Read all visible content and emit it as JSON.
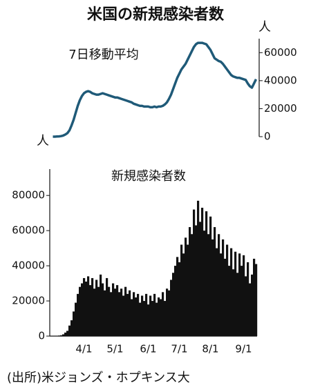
{
  "title": "米国の新規感染者数",
  "source": "(出所)米ジョンズ・ホプキンス大",
  "chart_data": [
    {
      "type": "line",
      "title": "7日移動平均",
      "y_unit": "人",
      "color": "#1f5a78",
      "ylim": [
        0,
        70000
      ],
      "yticks": [
        0,
        20000,
        40000,
        60000
      ],
      "y_side": "right",
      "values": [
        0,
        0,
        100,
        200,
        400,
        800,
        1500,
        2500,
        4500,
        8000,
        12000,
        17000,
        22000,
        26000,
        29000,
        31000,
        32000,
        32500,
        32000,
        31000,
        30500,
        30000,
        30000,
        30500,
        31000,
        30500,
        30000,
        29500,
        29000,
        28500,
        28000,
        28000,
        27500,
        27000,
        26500,
        26000,
        25500,
        25000,
        24500,
        23500,
        23000,
        22500,
        22000,
        22000,
        21500,
        21500,
        21500,
        21000,
        21000,
        21500,
        21000,
        21500,
        21500,
        22000,
        23000,
        24500,
        27000,
        30000,
        34000,
        38000,
        42000,
        45000,
        48000,
        50000,
        52000,
        55000,
        58000,
        61000,
        64000,
        66000,
        67000,
        67000,
        67000,
        66500,
        66000,
        64000,
        62000,
        59000,
        56000,
        55000,
        54000,
        53500,
        52000,
        50000,
        48000,
        46000,
        44000,
        43000,
        42500,
        42000,
        42000,
        41500,
        41000,
        40500,
        38000,
        36000,
        35000,
        38000,
        41000
      ]
    },
    {
      "type": "bar",
      "title": "新規感染者数",
      "y_unit": "人",
      "color": "#111111",
      "ylim": [
        0,
        95000
      ],
      "yticks": [
        0,
        20000,
        40000,
        60000,
        80000
      ],
      "y_side": "left",
      "categories": [
        null,
        null,
        null,
        null,
        null,
        null,
        null,
        null,
        null,
        null,
        null,
        null,
        null,
        null,
        null,
        "4/1",
        null,
        null,
        null,
        null,
        null,
        null,
        null,
        null,
        null,
        null,
        null,
        null,
        null,
        null,
        "5/1",
        null,
        null,
        null,
        null,
        null,
        null,
        null,
        null,
        null,
        null,
        null,
        null,
        null,
        null,
        null,
        "6/1",
        null,
        null,
        null,
        null,
        null,
        null,
        null,
        null,
        null,
        null,
        null,
        null,
        null,
        null,
        "7/1",
        null,
        null,
        null,
        null,
        null,
        null,
        null,
        null,
        null,
        null,
        null,
        null,
        null,
        null,
        "8/1",
        null,
        null,
        null,
        null,
        null,
        null,
        null,
        null,
        null,
        null,
        null,
        null,
        null,
        null,
        null,
        "9/1",
        null,
        null,
        null,
        null,
        null,
        null
      ],
      "values": [
        0,
        50,
        150,
        300,
        500,
        1000,
        2000,
        3000,
        6000,
        9000,
        14000,
        19000,
        24000,
        28000,
        30000,
        33000,
        31000,
        34000,
        29000,
        33000,
        27000,
        32000,
        28000,
        35000,
        30000,
        26000,
        33000,
        28000,
        25000,
        30000,
        27000,
        29000,
        25000,
        27000,
        23000,
        28000,
        24000,
        26000,
        21000,
        25000,
        22000,
        24000,
        19000,
        23000,
        20000,
        24000,
        18000,
        23000,
        20000,
        24000,
        19000,
        22000,
        21000,
        25000,
        20000,
        27000,
        26000,
        32000,
        36000,
        40000,
        45000,
        42000,
        52000,
        47000,
        56000,
        52000,
        62000,
        58000,
        72000,
        63000,
        77000,
        65000,
        73000,
        60000,
        71000,
        58000,
        68000,
        55000,
        62000,
        50000,
        58000,
        47000,
        55000,
        44000,
        52000,
        40000,
        50000,
        38000,
        48000,
        36000,
        47000,
        40000,
        46000,
        34000,
        42000,
        30000,
        35000,
        44000,
        41000
      ]
    }
  ]
}
